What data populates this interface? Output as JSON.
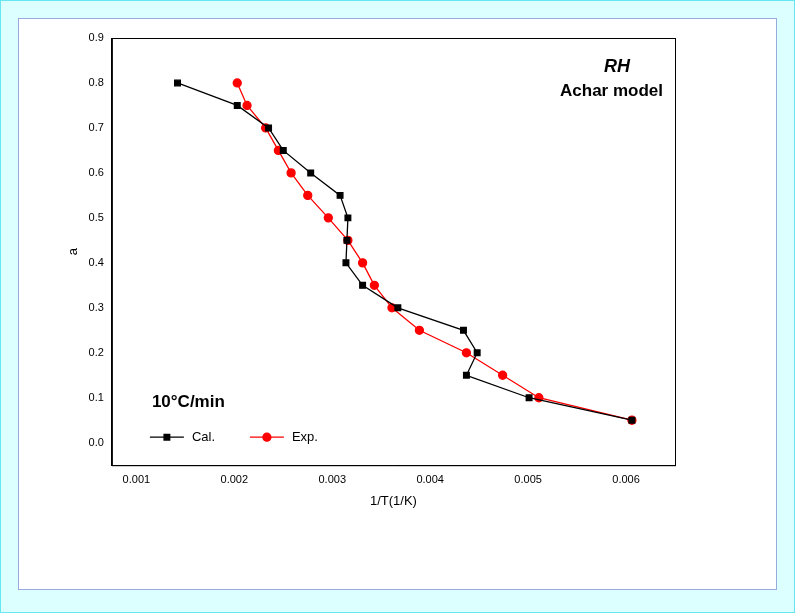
{
  "chart_data": {
    "type": "line",
    "x_label": "1/T(1/K)",
    "y_label": "a",
    "annotations": [
      "RH",
      "Achar model",
      "10°C/min"
    ],
    "series": [
      {
        "name": "Cal.",
        "color": "#000000",
        "marker": "square",
        "line_style": "solid",
        "x": [
          0.00142,
          0.00203,
          0.00235,
          0.0025,
          0.00278,
          0.00308,
          0.00316,
          0.00315,
          0.00314,
          0.00331,
          0.00367,
          0.00434,
          0.00448,
          0.00437,
          0.00501,
          0.00606
        ],
        "values": [
          0.8,
          0.75,
          0.7,
          0.65,
          0.6,
          0.55,
          0.5,
          0.45,
          0.4,
          0.35,
          0.3,
          0.25,
          0.2,
          0.15,
          0.1,
          0.05
        ]
      },
      {
        "name": "Exp.",
        "color": "#ff0000",
        "marker": "circle",
        "line_style": "solid",
        "x": [
          0.00203,
          0.00213,
          0.00232,
          0.00245,
          0.00258,
          0.00275,
          0.00296,
          0.00316,
          0.00331,
          0.00343,
          0.00361,
          0.00389,
          0.00437,
          0.00474,
          0.00511,
          0.00606
        ],
        "values": [
          0.8,
          0.75,
          0.7,
          0.65,
          0.6,
          0.55,
          0.5,
          0.45,
          0.4,
          0.35,
          0.3,
          0.25,
          0.2,
          0.15,
          0.1,
          0.05
        ]
      }
    ],
    "xlim": [
      0.00075,
      0.0065
    ],
    "xticks": [
      0.001,
      0.002,
      0.003,
      0.004,
      0.005,
      0.006
    ],
    "ylim": [
      -0.05,
      0.9
    ],
    "yticks": [
      {
        "value": 0,
        "label": "0.0"
      },
      0.1,
      0.2,
      0.3,
      0.4,
      0.5,
      0.6,
      0.7,
      0.8,
      0.9
    ],
    "grid": false,
    "legend": "lower left"
  }
}
